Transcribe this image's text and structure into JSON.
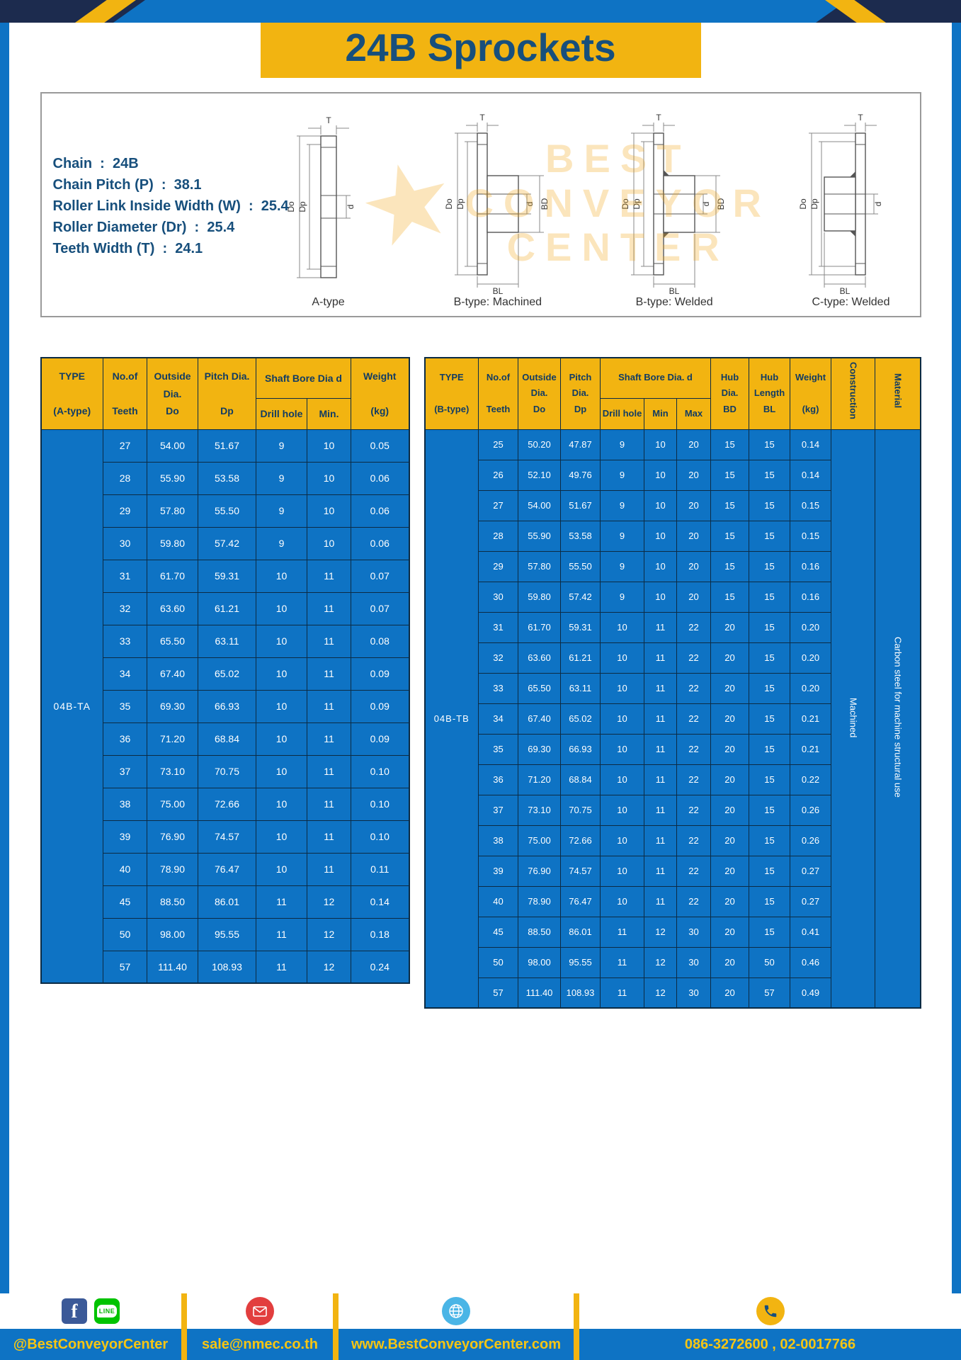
{
  "page": {
    "title": "24B Sprockets"
  },
  "specs": {
    "lines": [
      "Chain  :  24B",
      "Chain Pitch (P)  :  38.1",
      "Roller Link Inside Width (W)  :  25.4",
      "Roller Diameter (Dr)  :  25.4",
      "Teeth Width (T)  :  24.1"
    ]
  },
  "watermark": {
    "star": "★",
    "lines": [
      "BEST",
      "CONVEYOR",
      "CENTER"
    ]
  },
  "diagrams": {
    "captions": [
      "A-type",
      "B-type: Machined",
      "B-type: Welded",
      "C-type: Welded"
    ],
    "labels": {
      "t": "T",
      "outside": "Do",
      "pitch": "Dp",
      "bore": "d",
      "hub_dia": "BD",
      "hub_len": "BL"
    }
  },
  "table_a": {
    "type_value": "04B-TA",
    "headers": {
      "type": "TYPE\n\n(A-type)",
      "teeth": "No.of\n\nTeeth",
      "outside": "Outside\nDia.\nDo",
      "pitch": "Pitch Dia.\n\nDp",
      "shaft_group": "Shaft Bore Dia d",
      "drill": "Drill hole",
      "min": "Min.",
      "weight": "Weight\n\n(kg)"
    },
    "rows": [
      [
        "27",
        "54.00",
        "51.67",
        "9",
        "10",
        "0.05"
      ],
      [
        "28",
        "55.90",
        "53.58",
        "9",
        "10",
        "0.06"
      ],
      [
        "29",
        "57.80",
        "55.50",
        "9",
        "10",
        "0.06"
      ],
      [
        "30",
        "59.80",
        "57.42",
        "9",
        "10",
        "0.06"
      ],
      [
        "31",
        "61.70",
        "59.31",
        "10",
        "11",
        "0.07"
      ],
      [
        "32",
        "63.60",
        "61.21",
        "10",
        "11",
        "0.07"
      ],
      [
        "33",
        "65.50",
        "63.11",
        "10",
        "11",
        "0.08"
      ],
      [
        "34",
        "67.40",
        "65.02",
        "10",
        "11",
        "0.09"
      ],
      [
        "35",
        "69.30",
        "66.93",
        "10",
        "11",
        "0.09"
      ],
      [
        "36",
        "71.20",
        "68.84",
        "10",
        "11",
        "0.09"
      ],
      [
        "37",
        "73.10",
        "70.75",
        "10",
        "11",
        "0.10"
      ],
      [
        "38",
        "75.00",
        "72.66",
        "10",
        "11",
        "0.10"
      ],
      [
        "39",
        "76.90",
        "74.57",
        "10",
        "11",
        "0.10"
      ],
      [
        "40",
        "78.90",
        "76.47",
        "10",
        "11",
        "0.11"
      ],
      [
        "45",
        "88.50",
        "86.01",
        "11",
        "12",
        "0.14"
      ],
      [
        "50",
        "98.00",
        "95.55",
        "11",
        "12",
        "0.18"
      ],
      [
        "57",
        "111.40",
        "108.93",
        "11",
        "12",
        "0.24"
      ]
    ]
  },
  "table_b": {
    "type_value": "04B-TB",
    "construction_value": "Machined",
    "material_value": "Carbon steel for machine structural use",
    "headers": {
      "type": "TYPE\n\n(B-type)",
      "teeth": "No.of\n\nTeeth",
      "outside": "Outside\nDia.\nDo",
      "pitch": "Pitch\nDia.\nDp",
      "shaft_group": "Shaft Bore Dia. d",
      "drill": "Drill hole",
      "min": "Min",
      "max": "Max",
      "hub_dia": "Hub\nDia.\nBD",
      "hub_len": "Hub\nLength\nBL",
      "weight": "Weight\n\n(kg)",
      "construction": "Construction",
      "material": "Material"
    },
    "rows": [
      [
        "25",
        "50.20",
        "47.87",
        "9",
        "10",
        "20",
        "15",
        "15",
        "0.14"
      ],
      [
        "26",
        "52.10",
        "49.76",
        "9",
        "10",
        "20",
        "15",
        "15",
        "0.14"
      ],
      [
        "27",
        "54.00",
        "51.67",
        "9",
        "10",
        "20",
        "15",
        "15",
        "0.15"
      ],
      [
        "28",
        "55.90",
        "53.58",
        "9",
        "10",
        "20",
        "15",
        "15",
        "0.15"
      ],
      [
        "29",
        "57.80",
        "55.50",
        "9",
        "10",
        "20",
        "15",
        "15",
        "0.16"
      ],
      [
        "30",
        "59.80",
        "57.42",
        "9",
        "10",
        "20",
        "15",
        "15",
        "0.16"
      ],
      [
        "31",
        "61.70",
        "59.31",
        "10",
        "11",
        "22",
        "20",
        "15",
        "0.20"
      ],
      [
        "32",
        "63.60",
        "61.21",
        "10",
        "11",
        "22",
        "20",
        "15",
        "0.20"
      ],
      [
        "33",
        "65.50",
        "63.11",
        "10",
        "11",
        "22",
        "20",
        "15",
        "0.20"
      ],
      [
        "34",
        "67.40",
        "65.02",
        "10",
        "11",
        "22",
        "20",
        "15",
        "0.21"
      ],
      [
        "35",
        "69.30",
        "66.93",
        "10",
        "11",
        "22",
        "20",
        "15",
        "0.21"
      ],
      [
        "36",
        "71.20",
        "68.84",
        "10",
        "11",
        "22",
        "20",
        "15",
        "0.22"
      ],
      [
        "37",
        "73.10",
        "70.75",
        "10",
        "11",
        "22",
        "20",
        "15",
        "0.26"
      ],
      [
        "38",
        "75.00",
        "72.66",
        "10",
        "11",
        "22",
        "20",
        "15",
        "0.26"
      ],
      [
        "39",
        "76.90",
        "74.57",
        "10",
        "11",
        "22",
        "20",
        "15",
        "0.27"
      ],
      [
        "40",
        "78.90",
        "76.47",
        "10",
        "11",
        "22",
        "20",
        "15",
        "0.27"
      ],
      [
        "45",
        "88.50",
        "86.01",
        "11",
        "12",
        "30",
        "20",
        "15",
        "0.41"
      ],
      [
        "50",
        "98.00",
        "95.55",
        "11",
        "12",
        "30",
        "20",
        "50",
        "0.46"
      ],
      [
        "57",
        "111.40",
        "108.93",
        "11",
        "12",
        "30",
        "20",
        "57",
        "0.49"
      ]
    ]
  },
  "footer": {
    "facebook_label": "f",
    "line_label": "LINE",
    "sections": [
      {
        "name": "social",
        "text": "@BestConveyorCenter"
      },
      {
        "name": "email",
        "text": "sale@nmec.co.th"
      },
      {
        "name": "website",
        "text": "www.BestConveyorCenter.com"
      },
      {
        "name": "phone",
        "text": "086-3272600 , 02-0017766"
      }
    ]
  },
  "colors": {
    "blue": "#0e73c4",
    "gold": "#f2b411",
    "navy": "#174f7c",
    "grid": "#0c2b44",
    "corner": "#1c2b4e",
    "footer_text": "#f6c513"
  }
}
